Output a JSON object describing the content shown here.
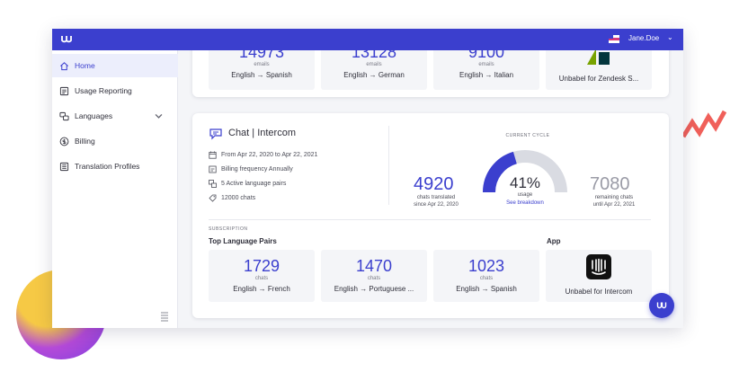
{
  "header": {
    "user_name": "Jane.Doe"
  },
  "sidebar": {
    "items": [
      {
        "label": "Home",
        "icon": "home-icon"
      },
      {
        "label": "Usage Reporting",
        "icon": "report-icon"
      },
      {
        "label": "Languages",
        "icon": "languages-icon"
      },
      {
        "label": "Billing",
        "icon": "billing-icon"
      },
      {
        "label": "Translation Profiles",
        "icon": "profiles-icon"
      }
    ]
  },
  "email_card": {
    "tiles": [
      {
        "value": "14973",
        "unit": "emails",
        "pair": "English → Spanish"
      },
      {
        "value": "13128",
        "unit": "emails",
        "pair": "English → German"
      },
      {
        "value": "9100",
        "unit": "emails",
        "pair": "English → Italian"
      }
    ],
    "app_label": "Unbabel for Zendesk S..."
  },
  "chat_card": {
    "title": "Chat | Intercom",
    "info": {
      "period": "From Apr 22, 2020 to Apr 22, 2021",
      "billing": "Billing frequency Annually",
      "pairs": "5 Active language pairs",
      "chats": "12000 chats"
    },
    "cycle": {
      "label": "CURRENT CYCLE",
      "translated_value": "4920",
      "translated_label_1": "chats translated",
      "translated_label_2": "since Apr 22, 2020",
      "usage_percent": 41,
      "usage_text": "41%",
      "usage_label": "usage",
      "breakdown_link": "See breakdown",
      "remaining_value": "7080",
      "remaining_label_1": "remaining chats",
      "remaining_label_2": "until Apr 22, 2021"
    },
    "subscription_label": "SUBSCRIPTION",
    "top_pairs_title": "Top Language Pairs",
    "app_title": "App",
    "tiles": [
      {
        "value": "1729",
        "unit": "chats",
        "pair": "English → French"
      },
      {
        "value": "1470",
        "unit": "chats",
        "pair": "English → Portuguese ..."
      },
      {
        "value": "1023",
        "unit": "chats",
        "pair": "English → Spanish"
      }
    ],
    "app_label": "Unbabel for Intercom"
  },
  "colors": {
    "accent": "#3b3fce",
    "topbar": "#3b3fce",
    "gauge_track": "#d9dbe2"
  }
}
